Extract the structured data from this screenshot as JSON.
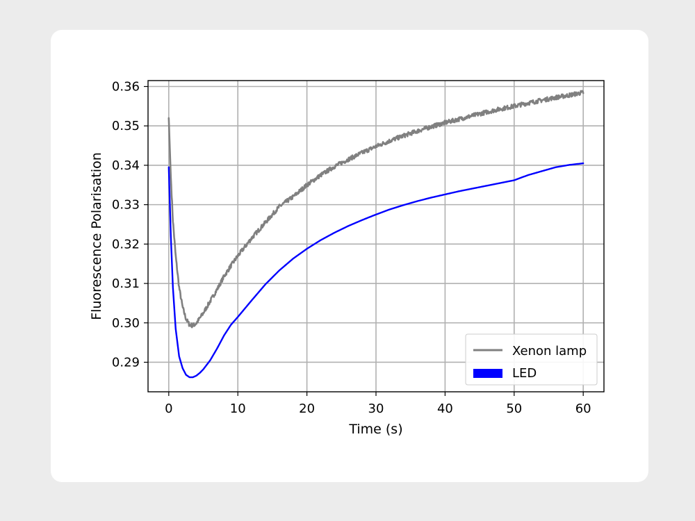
{
  "chart_data": {
    "type": "line",
    "title": "",
    "xlabel": "Time (s)",
    "ylabel": "Fluorescence Polarisation",
    "xlim": [
      -3,
      63
    ],
    "ylim": [
      0.2825,
      0.3615
    ],
    "xticks": [
      0,
      10,
      20,
      30,
      40,
      50,
      60
    ],
    "yticks": [
      0.29,
      0.3,
      0.31,
      0.32,
      0.33,
      0.34,
      0.35,
      0.36
    ],
    "ytick_labels": [
      "0.29",
      "0.30",
      "0.31",
      "0.32",
      "0.33",
      "0.34",
      "0.35",
      "0.36"
    ],
    "grid": true,
    "legend_position": "bottom-right",
    "series": [
      {
        "name": "Xenon lamp",
        "color": "#808080",
        "noisy": true,
        "x": [
          0,
          0.3,
          0.6,
          1,
          1.5,
          2,
          2.5,
          3,
          3.5,
          4,
          4.5,
          5,
          6,
          7,
          8,
          9,
          10,
          12,
          14,
          16,
          18,
          20,
          22,
          24,
          26,
          28,
          30,
          32,
          34,
          36,
          38,
          40,
          42,
          44,
          46,
          48,
          50,
          52,
          54,
          56,
          58,
          60
        ],
        "y": [
          0.352,
          0.337,
          0.326,
          0.317,
          0.309,
          0.304,
          0.301,
          0.2995,
          0.2993,
          0.2999,
          0.3012,
          0.3025,
          0.3055,
          0.3085,
          0.3118,
          0.3145,
          0.317,
          0.3215,
          0.3255,
          0.3295,
          0.332,
          0.335,
          0.3375,
          0.3397,
          0.3415,
          0.3432,
          0.3448,
          0.3462,
          0.3475,
          0.3487,
          0.3498,
          0.3508,
          0.3517,
          0.3526,
          0.3535,
          0.3543,
          0.355,
          0.3558,
          0.3565,
          0.3572,
          0.3578,
          0.3585
        ]
      },
      {
        "name": "LED",
        "color": "#0000ff",
        "noisy": false,
        "x": [
          0,
          0.3,
          0.6,
          1,
          1.5,
          2,
          2.5,
          3,
          3.5,
          4,
          4.5,
          5,
          6,
          7,
          8,
          9,
          10,
          12,
          14,
          16,
          18,
          20,
          22,
          24,
          26,
          28,
          30,
          32,
          34,
          36,
          38,
          40,
          42,
          44,
          46,
          48,
          50,
          52,
          54,
          56,
          58,
          60
        ],
        "y": [
          0.3395,
          0.322,
          0.309,
          0.2985,
          0.2915,
          0.2885,
          0.2868,
          0.2862,
          0.2862,
          0.2866,
          0.2873,
          0.2882,
          0.2905,
          0.2935,
          0.2968,
          0.2995,
          0.3015,
          0.3057,
          0.3098,
          0.3133,
          0.3163,
          0.3188,
          0.321,
          0.3229,
          0.3246,
          0.3261,
          0.3275,
          0.3288,
          0.3299,
          0.3309,
          0.3318,
          0.3326,
          0.3334,
          0.3341,
          0.3348,
          0.3355,
          0.3362,
          0.3375,
          0.3385,
          0.3395,
          0.3401,
          0.3405
        ]
      }
    ]
  }
}
